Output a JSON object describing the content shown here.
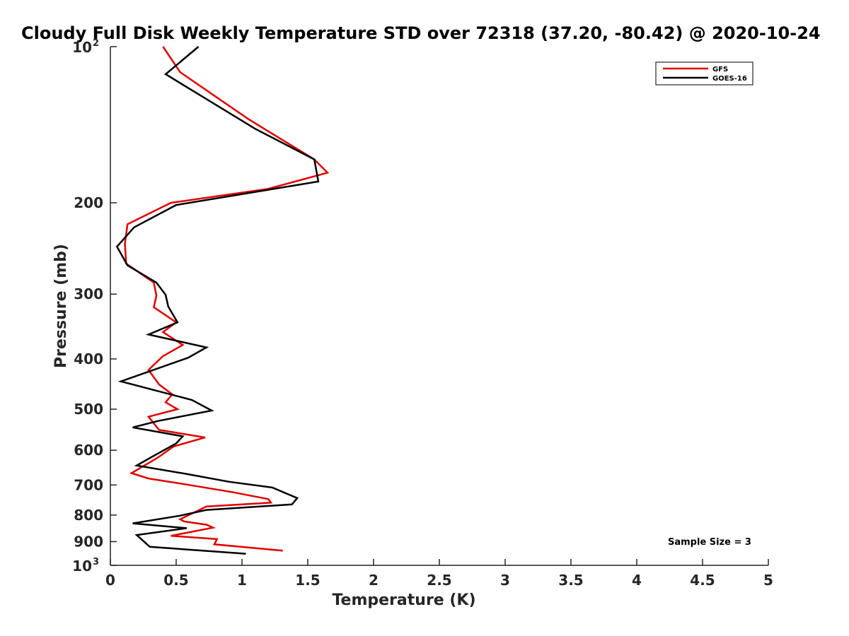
{
  "chart_data": {
    "type": "line",
    "title": "Cloudy Full Disk Weekly Temperature STD over 72318 (37.20, -80.42) @ 2020-10-24",
    "xlabel": "Temperature (K)",
    "ylabel": "Pressure (mb)",
    "xlim": [
      0,
      5
    ],
    "ylim": [
      100,
      1000
    ],
    "yscale": "log",
    "yreverse": true,
    "grid": false,
    "legend_position": "top-right",
    "x_ticks": [
      0,
      0.5,
      1,
      1.5,
      2,
      2.5,
      3,
      3.5,
      4,
      4.5,
      5
    ],
    "x_tick_labels": [
      "0",
      "0.5",
      "1",
      "1.5",
      "2",
      "2.5",
      "3",
      "3.5",
      "4",
      "4.5",
      "5"
    ],
    "y_ticks": [
      {
        "value": 100,
        "base": "10",
        "exp": "2"
      },
      {
        "value": 200,
        "label": "200"
      },
      {
        "value": 300,
        "label": "300"
      },
      {
        "value": 400,
        "label": "400"
      },
      {
        "value": 500,
        "label": "500"
      },
      {
        "value": 600,
        "label": "600"
      },
      {
        "value": 700,
        "label": "700"
      },
      {
        "value": 800,
        "label": "800"
      },
      {
        "value": 900,
        "label": "900"
      },
      {
        "value": 1000,
        "base": "10",
        "exp": "3"
      }
    ],
    "series": [
      {
        "name": "GFS",
        "color": "#e00000",
        "points": [
          [
            0.4,
            100
          ],
          [
            0.53,
            112
          ],
          [
            1.05,
            138
          ],
          [
            1.55,
            165
          ],
          [
            1.65,
            175
          ],
          [
            1.2,
            188
          ],
          [
            0.46,
            200
          ],
          [
            0.13,
            220
          ],
          [
            0.11,
            240
          ],
          [
            0.12,
            262
          ],
          [
            0.33,
            285
          ],
          [
            0.35,
            302
          ],
          [
            0.33,
            318
          ],
          [
            0.5,
            340
          ],
          [
            0.4,
            355
          ],
          [
            0.55,
            376
          ],
          [
            0.4,
            395
          ],
          [
            0.29,
            420
          ],
          [
            0.37,
            448
          ],
          [
            0.47,
            468
          ],
          [
            0.42,
            485
          ],
          [
            0.51,
            500
          ],
          [
            0.29,
            517
          ],
          [
            0.37,
            548
          ],
          [
            0.72,
            567
          ],
          [
            0.48,
            590
          ],
          [
            0.36,
            620
          ],
          [
            0.16,
            664
          ],
          [
            0.29,
            680
          ],
          [
            0.6,
            700
          ],
          [
            0.92,
            722
          ],
          [
            1.2,
            745
          ],
          [
            1.22,
            757
          ],
          [
            0.73,
            770
          ],
          [
            0.53,
            815
          ],
          [
            0.56,
            823
          ],
          [
            0.73,
            835
          ],
          [
            0.78,
            846
          ],
          [
            0.46,
            877
          ],
          [
            0.81,
            890
          ],
          [
            0.79,
            911
          ],
          [
            1.31,
            937
          ]
        ]
      },
      {
        "name": "GOES-16",
        "color": "#000000",
        "points": [
          [
            0.67,
            100
          ],
          [
            0.42,
            113
          ],
          [
            1.1,
            144
          ],
          [
            1.55,
            165
          ],
          [
            1.58,
            182
          ],
          [
            0.5,
            202
          ],
          [
            0.18,
            223
          ],
          [
            0.05,
            243
          ],
          [
            0.13,
            264
          ],
          [
            0.35,
            285
          ],
          [
            0.42,
            301
          ],
          [
            0.44,
            317
          ],
          [
            0.51,
            340
          ],
          [
            0.29,
            359
          ],
          [
            0.73,
            380
          ],
          [
            0.59,
            398
          ],
          [
            0.08,
            442
          ],
          [
            0.62,
            480
          ],
          [
            0.77,
            503
          ],
          [
            0.36,
            527
          ],
          [
            0.17,
            542
          ],
          [
            0.55,
            564
          ],
          [
            0.5,
            582
          ],
          [
            0.33,
            615
          ],
          [
            0.2,
            642
          ],
          [
            0.57,
            666
          ],
          [
            0.9,
            690
          ],
          [
            1.23,
            708
          ],
          [
            1.42,
            742
          ],
          [
            1.38,
            763
          ],
          [
            0.73,
            782
          ],
          [
            0.53,
            802
          ],
          [
            0.17,
            830
          ],
          [
            0.58,
            848
          ],
          [
            0.2,
            874
          ],
          [
            0.3,
            921
          ],
          [
            1.03,
            950
          ]
        ]
      }
    ],
    "annotations": [
      {
        "text": "Sample Size = 3",
        "position": "bottom-right"
      }
    ]
  }
}
